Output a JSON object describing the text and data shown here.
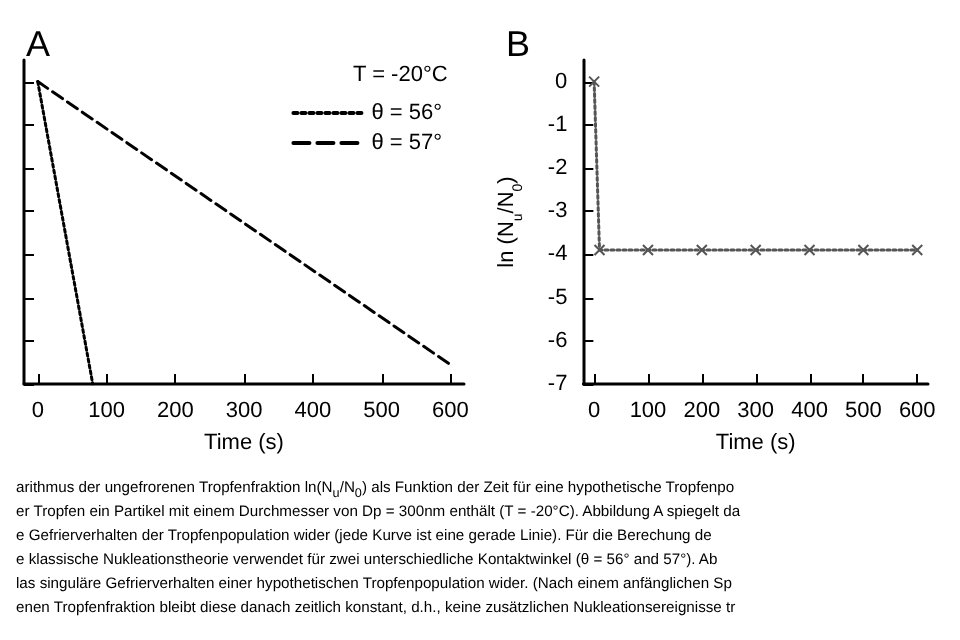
{
  "chart_data": [
    {
      "type": "line",
      "title": "A",
      "xlabel": "Time (s)",
      "legend_title": "T = -20°C",
      "legend": "top right",
      "tick_labels": "x",
      "xlim": [
        -20,
        620
      ],
      "xticks": [
        0,
        100,
        200,
        300,
        400,
        500,
        600
      ],
      "ylim": [
        -7,
        0.5
      ],
      "yticks": [
        -7,
        -6,
        -5,
        -4,
        -3,
        -2,
        -1,
        0
      ],
      "series": [
        {
          "name": "θ = 56°",
          "color": "#000000",
          "line_style": "dotted",
          "marker": "none",
          "x": [
            0,
            80
          ],
          "values": [
            0,
            -7
          ]
        },
        {
          "name": "θ = 57°",
          "color": "#000000",
          "line_style": "dashed",
          "marker": "none",
          "x": [
            0,
            600
          ],
          "values": [
            0,
            -6.55
          ]
        }
      ],
      "annotations": [
        "arithmus der ungefrorenen Tropfenfraktion ln(N$_{u}$/N$_{0}$) als Funktion der Zeit  für eine hypothetische Tropfenpo",
        "er Tropfen ein Partikel mit einem Durchmesser von Dp = 300nm enthält (T = -20°C). Abbildung A spiegelt da",
        "e Gefrierverhalten der Tropfenpopulation wider (jede Kurve ist eine gerade Linie). Für die Berechung de",
        "e klassische Nukleationstheorie verwendet für zwei unterschiedliche Kontaktwinkel (θ = 56° and 57°). Ab",
        "las singuläre Gefrierverhalten einer hypothetischen Tropfenpopulation wider. (Nach einem anfänglichen Sp",
        "enen Tropfenfraktion bleibt diese danach zeitlich konstant, d.h., keine zusätzlichen Nukleationsereignisse tr"
      ]
    },
    {
      "type": "line",
      "title": "B",
      "xlabel": "Time (s)",
      "ylabel": "ln (N$_{u}$/N$_{0}$)",
      "legend": false,
      "xlim": [
        -20,
        620
      ],
      "xticks": [
        0,
        100,
        200,
        300,
        400,
        500,
        600
      ],
      "ylim": [
        -7,
        0.5
      ],
      "yticks": [
        -7,
        -6,
        -5,
        -4,
        -3,
        -2,
        -1,
        0
      ],
      "series": [
        {
          "color": "#555555",
          "line_style": "dotted",
          "marker": "cross",
          "x": [
            0,
            10,
            100,
            200,
            300,
            400,
            500,
            600
          ],
          "values": [
            0,
            -3.9,
            -3.9,
            -3.9,
            -3.9,
            -3.9,
            -3.9,
            -3.9
          ]
        }
      ]
    }
  ]
}
